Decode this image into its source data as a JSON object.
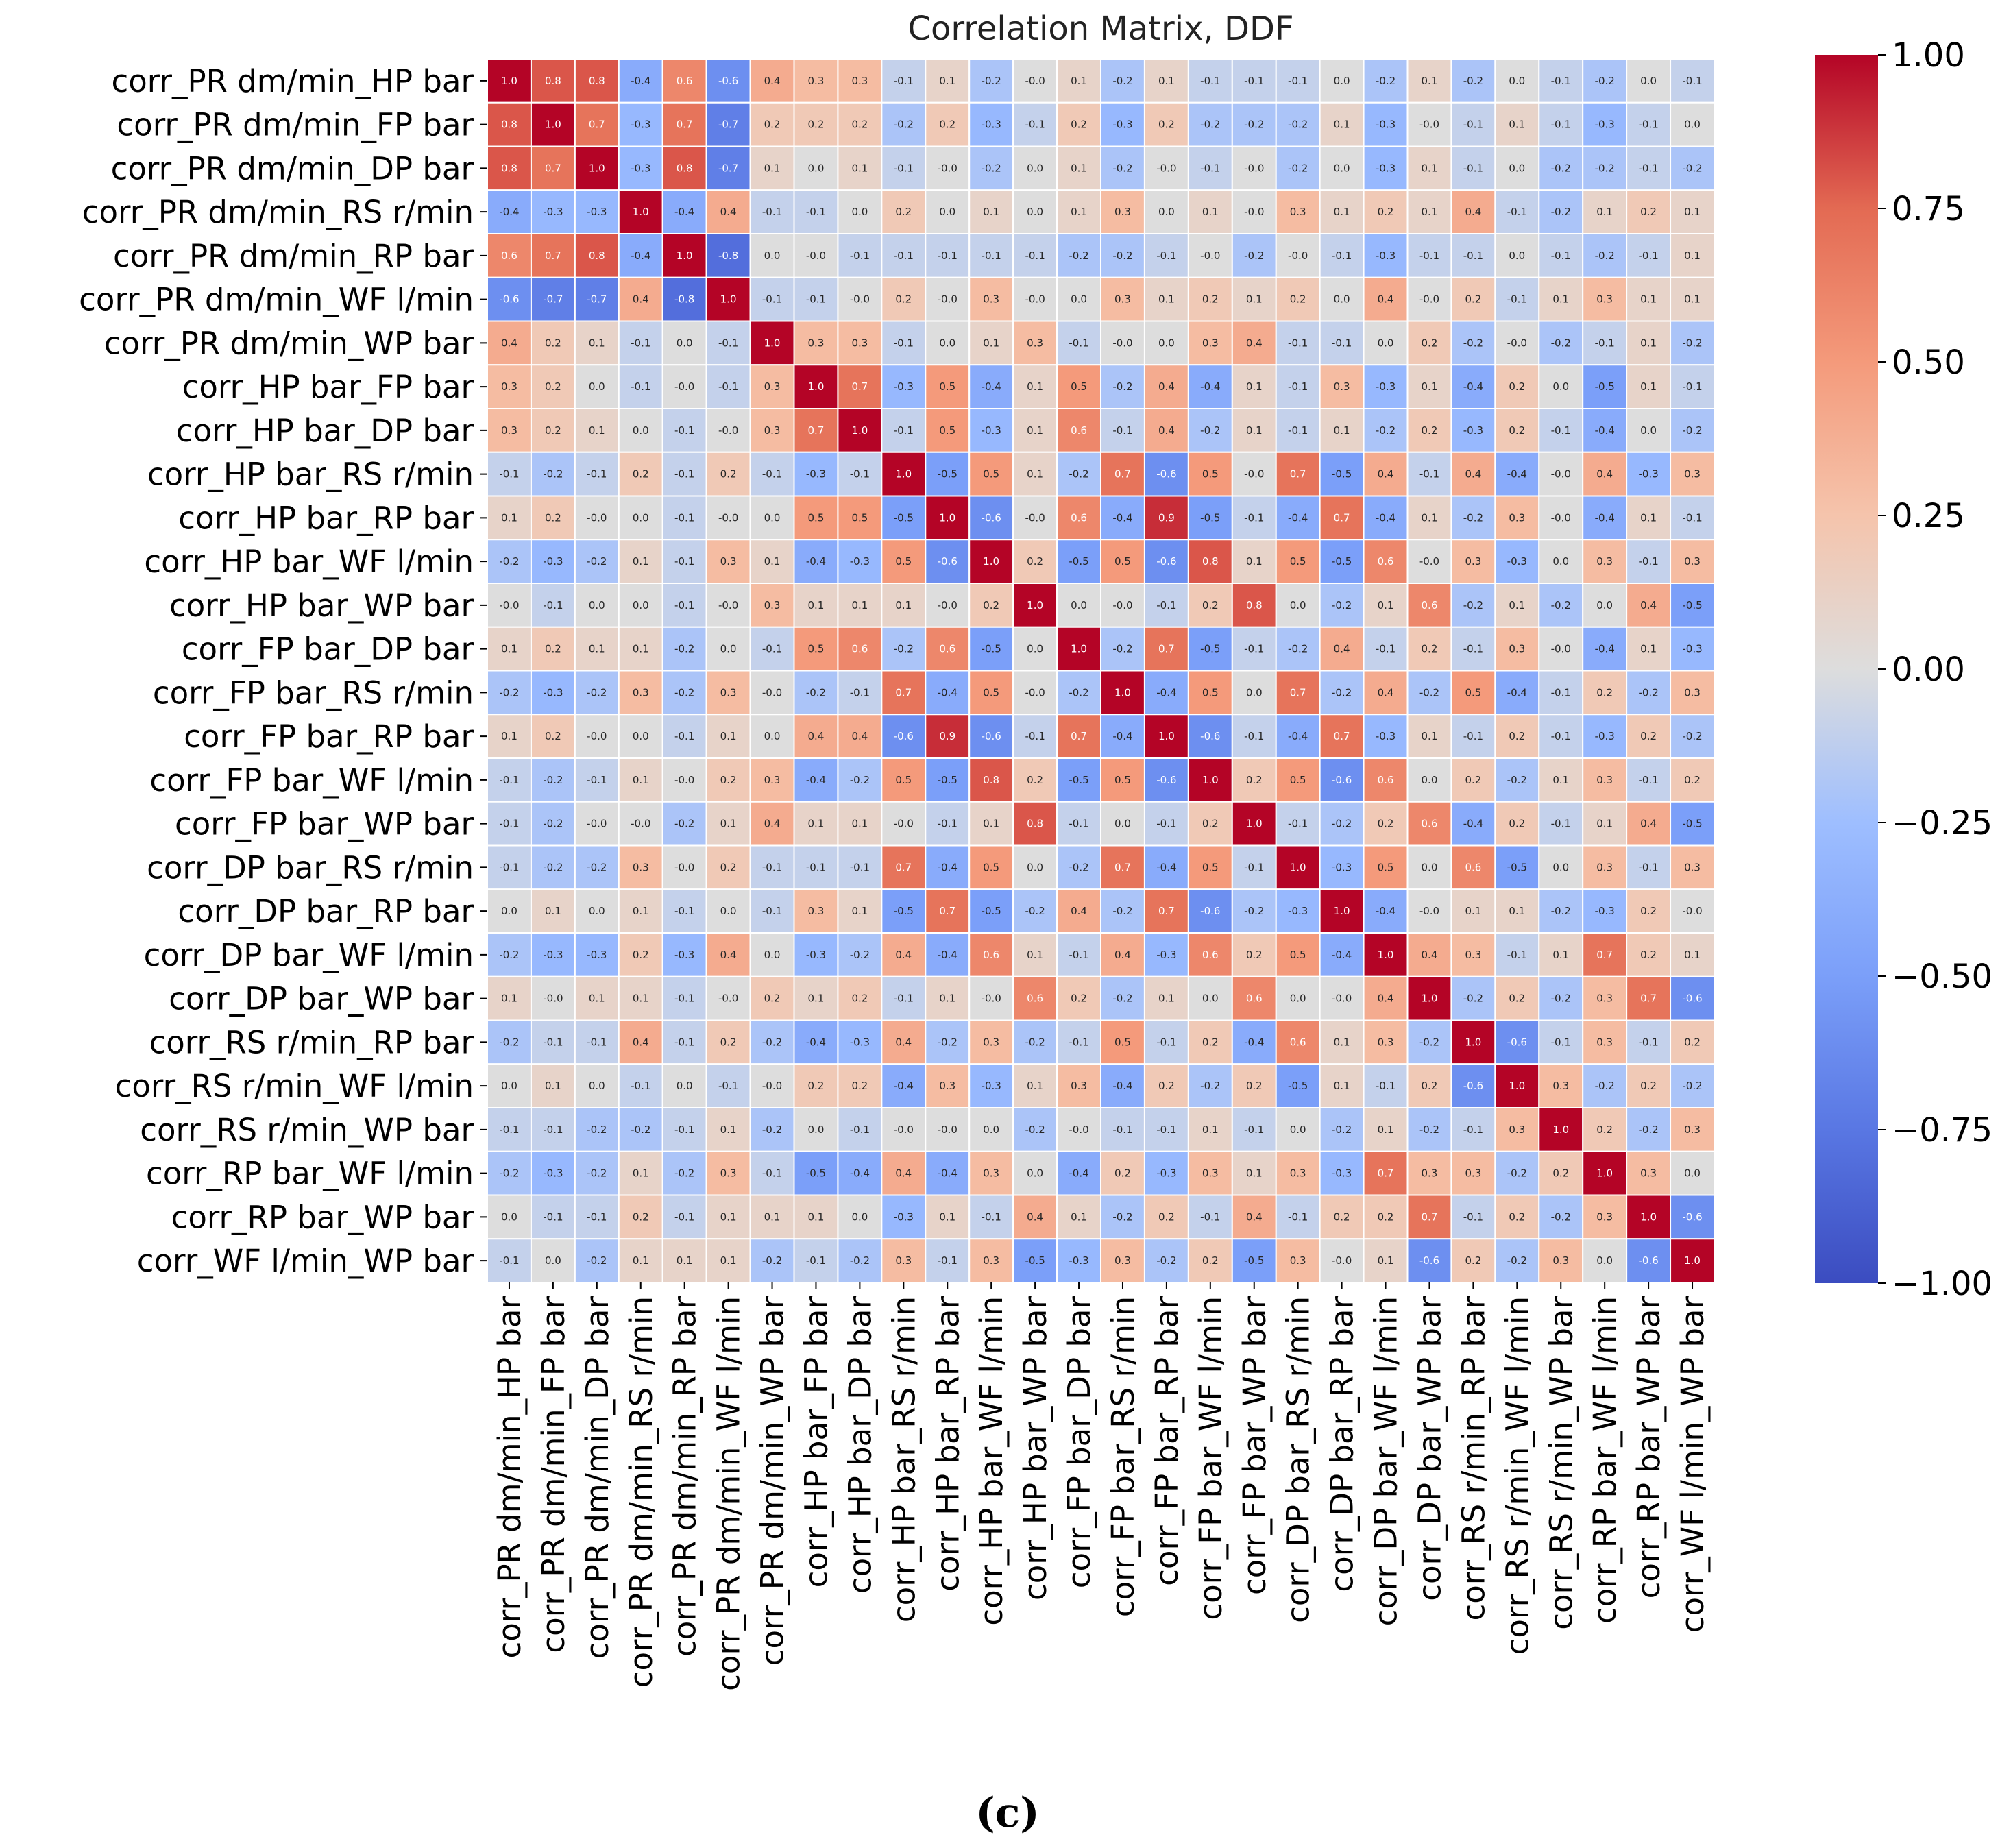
{
  "chart_data": {
    "type": "heatmap",
    "title": "Correlation Matrix, DDF",
    "caption": "(c)",
    "labels": [
      "corr_PR dm/min_HP bar",
      "corr_PR dm/min_FP bar",
      "corr_PR dm/min_DP bar",
      "corr_PR dm/min_RS r/min",
      "corr_PR dm/min_RP bar",
      "corr_PR dm/min_WF l/min",
      "corr_PR dm/min_WP bar",
      "corr_HP bar_FP bar",
      "corr_HP bar_DP bar",
      "corr_HP bar_RS r/min",
      "corr_HP bar_RP bar",
      "corr_HP bar_WF l/min",
      "corr_HP bar_WP bar",
      "corr_FP bar_DP bar",
      "corr_FP bar_RS r/min",
      "corr_FP bar_RP bar",
      "corr_FP bar_WF l/min",
      "corr_FP bar_WP bar",
      "corr_DP bar_RS r/min",
      "corr_DP bar_RP bar",
      "corr_DP bar_WF l/min",
      "corr_DP bar_WP bar",
      "corr_RS r/min_RP bar",
      "corr_RS r/min_WF l/min",
      "corr_RS r/min_WP bar",
      "corr_RP bar_WF l/min",
      "corr_RP bar_WP bar",
      "corr_WF l/min_WP bar"
    ],
    "cell_text": [
      [
        "1.0",
        "0.8",
        "0.8",
        "-0.4",
        "0.6",
        "-0.6",
        "0.4",
        "0.3",
        "0.3",
        "-0.1",
        "0.1",
        "-0.2",
        "-0.0",
        "0.1",
        "-0.2",
        "0.1",
        "-0.1",
        "-0.1",
        "-0.1",
        "0.0",
        "-0.2",
        "0.1",
        "-0.2",
        "0.0",
        "-0.1",
        "-0.2",
        "0.0",
        "-0.1"
      ],
      [
        "0.8",
        "1.0",
        "0.7",
        "-0.3",
        "0.7",
        "-0.7",
        "0.2",
        "0.2",
        "0.2",
        "-0.2",
        "0.2",
        "-0.3",
        "-0.1",
        "0.2",
        "-0.3",
        "0.2",
        "-0.2",
        "-0.2",
        "-0.2",
        "0.1",
        "-0.3",
        "-0.0",
        "-0.1",
        "0.1",
        "-0.1",
        "-0.3",
        "-0.1",
        "0.0"
      ],
      [
        "0.8",
        "0.7",
        "1.0",
        "-0.3",
        "0.8",
        "-0.7",
        "0.1",
        "0.0",
        "0.1",
        "-0.1",
        "-0.0",
        "-0.2",
        "0.0",
        "0.1",
        "-0.2",
        "-0.0",
        "-0.1",
        "-0.0",
        "-0.2",
        "0.0",
        "-0.3",
        "0.1",
        "-0.1",
        "0.0",
        "-0.2",
        "-0.2",
        "-0.1",
        "-0.2"
      ],
      [
        "-0.4",
        "-0.3",
        "-0.3",
        "1.0",
        "-0.4",
        "0.4",
        "-0.1",
        "-0.1",
        "0.0",
        "0.2",
        "0.0",
        "0.1",
        "0.0",
        "0.1",
        "0.3",
        "0.0",
        "0.1",
        "-0.0",
        "0.3",
        "0.1",
        "0.2",
        "0.1",
        "0.4",
        "-0.1",
        "-0.2",
        "0.1",
        "0.2",
        "0.1"
      ],
      [
        "0.6",
        "0.7",
        "0.8",
        "-0.4",
        "1.0",
        "-0.8",
        "0.0",
        "-0.0",
        "-0.1",
        "-0.1",
        "-0.1",
        "-0.1",
        "-0.1",
        "-0.2",
        "-0.2",
        "-0.1",
        "-0.0",
        "-0.2",
        "-0.0",
        "-0.1",
        "-0.3",
        "-0.1",
        "-0.1",
        "0.0",
        "-0.1",
        "-0.2",
        "-0.1",
        "0.1"
      ],
      [
        "-0.6",
        "-0.7",
        "-0.7",
        "0.4",
        "-0.8",
        "1.0",
        "-0.1",
        "-0.1",
        "-0.0",
        "0.2",
        "-0.0",
        "0.3",
        "-0.0",
        "0.0",
        "0.3",
        "0.1",
        "0.2",
        "0.1",
        "0.2",
        "0.0",
        "0.4",
        "-0.0",
        "0.2",
        "-0.1",
        "0.1",
        "0.3",
        "0.1",
        "0.1"
      ],
      [
        "0.4",
        "0.2",
        "0.1",
        "-0.1",
        "0.0",
        "-0.1",
        "1.0",
        "0.3",
        "0.3",
        "-0.1",
        "0.0",
        "0.1",
        "0.3",
        "-0.1",
        "-0.0",
        "0.0",
        "0.3",
        "0.4",
        "-0.1",
        "-0.1",
        "0.0",
        "0.2",
        "-0.2",
        "-0.0",
        "-0.2",
        "-0.1",
        "0.1",
        "-0.2"
      ],
      [
        "0.3",
        "0.2",
        "0.0",
        "-0.1",
        "-0.0",
        "-0.1",
        "0.3",
        "1.0",
        "0.7",
        "-0.3",
        "0.5",
        "-0.4",
        "0.1",
        "0.5",
        "-0.2",
        "0.4",
        "-0.4",
        "0.1",
        "-0.1",
        "0.3",
        "-0.3",
        "0.1",
        "-0.4",
        "0.2",
        "0.0",
        "-0.5",
        "0.1",
        "-0.1"
      ],
      [
        "0.3",
        "0.2",
        "0.1",
        "0.0",
        "-0.1",
        "-0.0",
        "0.3",
        "0.7",
        "1.0",
        "-0.1",
        "0.5",
        "-0.3",
        "0.1",
        "0.6",
        "-0.1",
        "0.4",
        "-0.2",
        "0.1",
        "-0.1",
        "0.1",
        "-0.2",
        "0.2",
        "-0.3",
        "0.2",
        "-0.1",
        "-0.4",
        "0.0",
        "-0.2"
      ],
      [
        "-0.1",
        "-0.2",
        "-0.1",
        "0.2",
        "-0.1",
        "0.2",
        "-0.1",
        "-0.3",
        "-0.1",
        "1.0",
        "-0.5",
        "0.5",
        "0.1",
        "-0.2",
        "0.7",
        "-0.6",
        "0.5",
        "-0.0",
        "0.7",
        "-0.5",
        "0.4",
        "-0.1",
        "0.4",
        "-0.4",
        "-0.0",
        "0.4",
        "-0.3",
        "0.3"
      ],
      [
        "0.1",
        "0.2",
        "-0.0",
        "0.0",
        "-0.1",
        "-0.0",
        "0.0",
        "0.5",
        "0.5",
        "-0.5",
        "1.0",
        "-0.6",
        "-0.0",
        "0.6",
        "-0.4",
        "0.9",
        "-0.5",
        "-0.1",
        "-0.4",
        "0.7",
        "-0.4",
        "0.1",
        "-0.2",
        "0.3",
        "-0.0",
        "-0.4",
        "0.1",
        "-0.1"
      ],
      [
        "-0.2",
        "-0.3",
        "-0.2",
        "0.1",
        "-0.1",
        "0.3",
        "0.1",
        "-0.4",
        "-0.3",
        "0.5",
        "-0.6",
        "1.0",
        "0.2",
        "-0.5",
        "0.5",
        "-0.6",
        "0.8",
        "0.1",
        "0.5",
        "-0.5",
        "0.6",
        "-0.0",
        "0.3",
        "-0.3",
        "0.0",
        "0.3",
        "-0.1",
        "0.3"
      ],
      [
        "-0.0",
        "-0.1",
        "0.0",
        "0.0",
        "-0.1",
        "-0.0",
        "0.3",
        "0.1",
        "0.1",
        "0.1",
        "-0.0",
        "0.2",
        "1.0",
        "0.0",
        "-0.0",
        "-0.1",
        "0.2",
        "0.8",
        "0.0",
        "-0.2",
        "0.1",
        "0.6",
        "-0.2",
        "0.1",
        "-0.2",
        "0.0",
        "0.4",
        "-0.5"
      ],
      [
        "0.1",
        "0.2",
        "0.1",
        "0.1",
        "-0.2",
        "0.0",
        "-0.1",
        "0.5",
        "0.6",
        "-0.2",
        "0.6",
        "-0.5",
        "0.0",
        "1.0",
        "-0.2",
        "0.7",
        "-0.5",
        "-0.1",
        "-0.2",
        "0.4",
        "-0.1",
        "0.2",
        "-0.1",
        "0.3",
        "-0.0",
        "-0.4",
        "0.1",
        "-0.3"
      ],
      [
        "-0.2",
        "-0.3",
        "-0.2",
        "0.3",
        "-0.2",
        "0.3",
        "-0.0",
        "-0.2",
        "-0.1",
        "0.7",
        "-0.4",
        "0.5",
        "-0.0",
        "-0.2",
        "1.0",
        "-0.4",
        "0.5",
        "0.0",
        "0.7",
        "-0.2",
        "0.4",
        "-0.2",
        "0.5",
        "-0.4",
        "-0.1",
        "0.2",
        "-0.2",
        "0.3"
      ],
      [
        "0.1",
        "0.2",
        "-0.0",
        "0.0",
        "-0.1",
        "0.1",
        "0.0",
        "0.4",
        "0.4",
        "-0.6",
        "0.9",
        "-0.6",
        "-0.1",
        "0.7",
        "-0.4",
        "1.0",
        "-0.6",
        "-0.1",
        "-0.4",
        "0.7",
        "-0.3",
        "0.1",
        "-0.1",
        "0.2",
        "-0.1",
        "-0.3",
        "0.2",
        "-0.2"
      ],
      [
        "-0.1",
        "-0.2",
        "-0.1",
        "0.1",
        "-0.0",
        "0.2",
        "0.3",
        "-0.4",
        "-0.2",
        "0.5",
        "-0.5",
        "0.8",
        "0.2",
        "-0.5",
        "0.5",
        "-0.6",
        "1.0",
        "0.2",
        "0.5",
        "-0.6",
        "0.6",
        "0.0",
        "0.2",
        "-0.2",
        "0.1",
        "0.3",
        "-0.1",
        "0.2"
      ],
      [
        "-0.1",
        "-0.2",
        "-0.0",
        "-0.0",
        "-0.2",
        "0.1",
        "0.4",
        "0.1",
        "0.1",
        "-0.0",
        "-0.1",
        "0.1",
        "0.8",
        "-0.1",
        "0.0",
        "-0.1",
        "0.2",
        "1.0",
        "-0.1",
        "-0.2",
        "0.2",
        "0.6",
        "-0.4",
        "0.2",
        "-0.1",
        "0.1",
        "0.4",
        "-0.5"
      ],
      [
        "-0.1",
        "-0.2",
        "-0.2",
        "0.3",
        "-0.0",
        "0.2",
        "-0.1",
        "-0.1",
        "-0.1",
        "0.7",
        "-0.4",
        "0.5",
        "0.0",
        "-0.2",
        "0.7",
        "-0.4",
        "0.5",
        "-0.1",
        "1.0",
        "-0.3",
        "0.5",
        "0.0",
        "0.6",
        "-0.5",
        "0.0",
        "0.3",
        "-0.1",
        "0.3"
      ],
      [
        "0.0",
        "0.1",
        "0.0",
        "0.1",
        "-0.1",
        "0.0",
        "-0.1",
        "0.3",
        "0.1",
        "-0.5",
        "0.7",
        "-0.5",
        "-0.2",
        "0.4",
        "-0.2",
        "0.7",
        "-0.6",
        "-0.2",
        "-0.3",
        "1.0",
        "-0.4",
        "-0.0",
        "0.1",
        "0.1",
        "-0.2",
        "-0.3",
        "0.2",
        "-0.0"
      ],
      [
        "-0.2",
        "-0.3",
        "-0.3",
        "0.2",
        "-0.3",
        "0.4",
        "0.0",
        "-0.3",
        "-0.2",
        "0.4",
        "-0.4",
        "0.6",
        "0.1",
        "-0.1",
        "0.4",
        "-0.3",
        "0.6",
        "0.2",
        "0.5",
        "-0.4",
        "1.0",
        "0.4",
        "0.3",
        "-0.1",
        "0.1",
        "0.7",
        "0.2",
        "0.1"
      ],
      [
        "0.1",
        "-0.0",
        "0.1",
        "0.1",
        "-0.1",
        "-0.0",
        "0.2",
        "0.1",
        "0.2",
        "-0.1",
        "0.1",
        "-0.0",
        "0.6",
        "0.2",
        "-0.2",
        "0.1",
        "0.0",
        "0.6",
        "0.0",
        "-0.0",
        "0.4",
        "1.0",
        "-0.2",
        "0.2",
        "-0.2",
        "0.3",
        "0.7",
        "-0.6"
      ],
      [
        "-0.2",
        "-0.1",
        "-0.1",
        "0.4",
        "-0.1",
        "0.2",
        "-0.2",
        "-0.4",
        "-0.3",
        "0.4",
        "-0.2",
        "0.3",
        "-0.2",
        "-0.1",
        "0.5",
        "-0.1",
        "0.2",
        "-0.4",
        "0.6",
        "0.1",
        "0.3",
        "-0.2",
        "1.0",
        "-0.6",
        "-0.1",
        "0.3",
        "-0.1",
        "0.2"
      ],
      [
        "0.0",
        "0.1",
        "0.0",
        "-0.1",
        "0.0",
        "-0.1",
        "-0.0",
        "0.2",
        "0.2",
        "-0.4",
        "0.3",
        "-0.3",
        "0.1",
        "0.3",
        "-0.4",
        "0.2",
        "-0.2",
        "0.2",
        "-0.5",
        "0.1",
        "-0.1",
        "0.2",
        "-0.6",
        "1.0",
        "0.3",
        "-0.2",
        "0.2",
        "-0.2"
      ],
      [
        "-0.1",
        "-0.1",
        "-0.2",
        "-0.2",
        "-0.1",
        "0.1",
        "-0.2",
        "0.0",
        "-0.1",
        "-0.0",
        "-0.0",
        "0.0",
        "-0.2",
        "-0.0",
        "-0.1",
        "-0.1",
        "0.1",
        "-0.1",
        "0.0",
        "-0.2",
        "0.1",
        "-0.2",
        "-0.1",
        "0.3",
        "1.0",
        "0.2",
        "-0.2",
        "0.3"
      ],
      [
        "-0.2",
        "-0.3",
        "-0.2",
        "0.1",
        "-0.2",
        "0.3",
        "-0.1",
        "-0.5",
        "-0.4",
        "0.4",
        "-0.4",
        "0.3",
        "0.0",
        "-0.4",
        "0.2",
        "-0.3",
        "0.3",
        "0.1",
        "0.3",
        "-0.3",
        "0.7",
        "0.3",
        "0.3",
        "-0.2",
        "0.2",
        "1.0",
        "0.3",
        "0.0"
      ],
      [
        "0.0",
        "-0.1",
        "-0.1",
        "0.2",
        "-0.1",
        "0.1",
        "0.1",
        "0.1",
        "0.0",
        "-0.3",
        "0.1",
        "-0.1",
        "0.4",
        "0.1",
        "-0.2",
        "0.2",
        "-0.1",
        "0.4",
        "-0.1",
        "0.2",
        "0.2",
        "0.7",
        "-0.1",
        "0.2",
        "-0.2",
        "0.3",
        "1.0",
        "-0.6"
      ],
      [
        "-0.1",
        "0.0",
        "-0.2",
        "0.1",
        "0.1",
        "0.1",
        "-0.2",
        "-0.1",
        "-0.2",
        "0.3",
        "-0.1",
        "0.3",
        "-0.5",
        "-0.3",
        "0.3",
        "-0.2",
        "0.2",
        "-0.5",
        "0.3",
        "-0.0",
        "0.1",
        "-0.6",
        "0.2",
        "-0.2",
        "0.3",
        "0.0",
        "-0.6",
        "1.0"
      ]
    ],
    "colorbar": {
      "colormap": "coolwarm",
      "range": [
        -1.0,
        1.0
      ],
      "ticks": [
        1.0,
        0.75,
        0.5,
        0.25,
        0.0,
        -0.25,
        -0.5,
        -0.75,
        -1.0
      ],
      "tick_labels": [
        "1.00",
        "0.75",
        "0.50",
        "0.25",
        "0.00",
        "−0.25",
        "−0.50",
        "−0.75",
        "−1.00"
      ]
    }
  }
}
